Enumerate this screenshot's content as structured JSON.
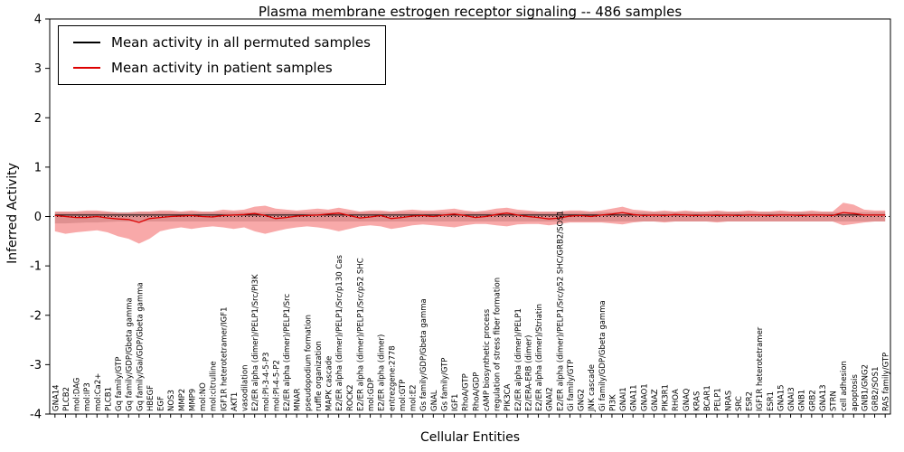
{
  "title": "Plasma membrane estrogen receptor signaling -- 486 samples",
  "chart_data": {
    "type": "line",
    "title": "Plasma membrane estrogen receptor signaling -- 486 samples",
    "xlabel": "Cellular Entities",
    "ylabel": "Inferred Activity",
    "ylim": [
      -4,
      4
    ],
    "yticks": [
      -4,
      -3,
      -2,
      -1,
      0,
      1,
      2,
      3,
      4
    ],
    "grid": false,
    "legend_position": "upper left",
    "categories": [
      "GNA14",
      "PLCB2",
      "mol:DAG",
      "mol:IP3",
      "mol:Ca2+",
      "PLCB1",
      "Gq family/GTP",
      "Gq family/GDP/Gbeta gamma",
      "Gq family/Gai/GDP/Gbeta gamma",
      "HBEGF",
      "EGF",
      "NOS3",
      "MMP2",
      "MMP9",
      "mol:NO",
      "mol:citrulline",
      "IGF1R heterotetramer/IGF1",
      "AKT1",
      "vasodilation",
      "E2/ER alpha (dimer)/PELP1/Src/PI3K",
      "mol:PI-3-4-5-P3",
      "mol:PI-4-5-P2",
      "E2/ER alpha (dimer)/PELP1/Src",
      "MNAR",
      "pseudopodium formation",
      "ruffle organization",
      "MAPK cascade",
      "E2/ER alpha (dimer)/PELP1/Src/p130 Cas",
      "ROCK2",
      "E2/ER alpha (dimer)/PELP1/Src/p52 SHC",
      "mol:GDP",
      "E2/ER alpha (dimer)",
      "entrezgene:2778",
      "mol:GTP",
      "mol:E2",
      "Gs family/GDP/Gbeta gamma",
      "GNAL",
      "Gs family/GTP",
      "IGF1",
      "RhoA/GTP",
      "RhoA/GDP",
      "cAMP biosynthetic process",
      "regulation of stress fiber formation",
      "PIK3CA",
      "E2/ER alpha (dimer)/PELP1",
      "E2/ERA-ERB (dimer)",
      "E2/ER alpha (dimer)/Striatin",
      "GNAI2",
      "E2/ER alpha (dimer)/PELP1/Src/p52 SHC/GRB2/SOS1",
      "Gi family/GTP",
      "GNG2",
      "JNK cascade",
      "Gi family/GDP/Gbeta gamma",
      "PI3K",
      "GNAI1",
      "GNA11",
      "GNAO1",
      "GNAZ",
      "PIK3R1",
      "RHOA",
      "GNAQ",
      "KRAS",
      "BCAR1",
      "PELP1",
      "NRAS",
      "SRC",
      "ESR2",
      "IGF1R heterotetramer",
      "ESR1",
      "GNA15",
      "GNAI3",
      "GNB1",
      "GRB2",
      "GNA13",
      "STRN",
      "cell adhesion",
      "apoptosis",
      "GNB1/GNG2",
      "GRB2/SOS1",
      "RAS family/GTP"
    ],
    "series": [
      {
        "name": "Mean activity in all permuted samples",
        "color": "#000000",
        "values": [
          0.03,
          0.03,
          0.03,
          0.03,
          0.03,
          0.03,
          0.03,
          0.03,
          0.03,
          0.03,
          0.03,
          0.03,
          0.03,
          0.03,
          0.03,
          0.03,
          0.03,
          0.03,
          0.03,
          0.03,
          0.03,
          0.03,
          0.03,
          0.03,
          0.03,
          0.03,
          0.03,
          0.03,
          0.03,
          0.03,
          0.03,
          0.03,
          0.03,
          0.03,
          0.03,
          0.03,
          0.03,
          0.03,
          0.03,
          0.03,
          0.03,
          0.03,
          0.03,
          0.03,
          0.03,
          0.03,
          0.03,
          0.03,
          0.03,
          0.03,
          0.03,
          0.03,
          0.03,
          0.03,
          0.03,
          0.03,
          0.03,
          0.03,
          0.03,
          0.03,
          0.03,
          0.03,
          0.03,
          0.03,
          0.03,
          0.03,
          0.03,
          0.03,
          0.03,
          0.03,
          0.03,
          0.03,
          0.03,
          0.03,
          0.03,
          0.03,
          0.03,
          0.03,
          0.03,
          0.03
        ]
      },
      {
        "name": "Mean activity in patient samples",
        "color": "#dd0000",
        "values": [
          0.02,
          0.0,
          -0.02,
          -0.02,
          0.0,
          -0.03,
          -0.05,
          -0.06,
          -0.12,
          -0.04,
          -0.02,
          0.0,
          0.01,
          0.02,
          0.0,
          -0.01,
          0.02,
          0.03,
          0.04,
          0.06,
          0.02,
          -0.04,
          -0.02,
          0.01,
          0.02,
          0.03,
          0.05,
          0.07,
          0.02,
          -0.03,
          -0.01,
          0.02,
          -0.04,
          -0.02,
          0.01,
          0.02,
          0.0,
          0.03,
          0.05,
          0.02,
          -0.02,
          0.0,
          0.04,
          0.07,
          0.03,
          0.0,
          -0.02,
          -0.05,
          -0.03,
          0.01,
          0.02,
          0.0,
          0.03,
          0.05,
          0.08,
          0.04,
          0.02,
          0.03,
          0.02,
          0.04,
          0.03,
          0.02,
          0.03,
          0.02,
          0.03,
          0.02,
          0.03,
          0.03,
          0.02,
          0.03,
          0.03,
          0.02,
          0.03,
          0.03,
          0.02,
          0.08,
          0.06,
          0.03,
          0.03,
          0.03
        ]
      }
    ],
    "bands": [
      {
        "name": "permuted-samples-range",
        "color": "#bfbfbf",
        "opacity": 0.65,
        "upper": [
          0.09,
          0.09,
          0.09,
          0.09,
          0.09,
          0.09,
          0.09,
          0.09,
          0.09,
          0.09,
          0.09,
          0.09,
          0.09,
          0.09,
          0.09,
          0.09,
          0.09,
          0.09,
          0.09,
          0.09,
          0.09,
          0.09,
          0.09,
          0.09,
          0.09,
          0.09,
          0.09,
          0.09,
          0.09,
          0.09,
          0.09,
          0.09,
          0.09,
          0.09,
          0.09,
          0.09,
          0.09,
          0.09,
          0.09,
          0.09,
          0.09,
          0.09,
          0.09,
          0.09,
          0.09,
          0.09,
          0.09,
          0.09,
          0.09,
          0.09,
          0.09,
          0.09,
          0.09,
          0.09,
          0.09,
          0.09,
          0.09,
          0.09,
          0.09,
          0.09,
          0.09,
          0.09,
          0.09,
          0.09,
          0.09,
          0.09,
          0.09,
          0.09,
          0.09,
          0.09,
          0.09,
          0.09,
          0.09,
          0.09,
          0.09,
          0.09,
          0.09,
          0.09,
          0.09,
          0.09
        ],
        "lower": [
          -0.14,
          -0.14,
          -0.13,
          -0.12,
          -0.12,
          -0.11,
          -0.1,
          -0.1,
          -0.1,
          -0.1,
          -0.1,
          -0.1,
          -0.1,
          -0.1,
          -0.1,
          -0.1,
          -0.1,
          -0.1,
          -0.1,
          -0.1,
          -0.1,
          -0.1,
          -0.1,
          -0.1,
          -0.1,
          -0.1,
          -0.1,
          -0.1,
          -0.1,
          -0.1,
          -0.1,
          -0.1,
          -0.1,
          -0.1,
          -0.1,
          -0.1,
          -0.1,
          -0.1,
          -0.1,
          -0.1,
          -0.1,
          -0.1,
          -0.1,
          -0.1,
          -0.1,
          -0.1,
          -0.1,
          -0.1,
          -0.1,
          -0.1,
          -0.1,
          -0.1,
          -0.1,
          -0.1,
          -0.1,
          -0.1,
          -0.1,
          -0.1,
          -0.1,
          -0.1,
          -0.1,
          -0.1,
          -0.1,
          -0.1,
          -0.1,
          -0.1,
          -0.1,
          -0.1,
          -0.1,
          -0.1,
          -0.1,
          -0.1,
          -0.1,
          -0.1,
          -0.1,
          -0.1,
          -0.1,
          -0.1,
          -0.1,
          -0.1
        ]
      },
      {
        "name": "patient-samples-range",
        "color": "#ee3333",
        "opacity": 0.42,
        "upper": [
          0.1,
          0.1,
          0.1,
          0.12,
          0.12,
          0.1,
          0.08,
          0.08,
          0.1,
          0.1,
          0.12,
          0.12,
          0.1,
          0.12,
          0.1,
          0.1,
          0.14,
          0.12,
          0.14,
          0.2,
          0.22,
          0.16,
          0.14,
          0.12,
          0.14,
          0.16,
          0.14,
          0.18,
          0.14,
          0.1,
          0.12,
          0.12,
          0.1,
          0.12,
          0.14,
          0.12,
          0.12,
          0.14,
          0.16,
          0.12,
          0.1,
          0.12,
          0.16,
          0.18,
          0.14,
          0.12,
          0.1,
          0.1,
          0.1,
          0.12,
          0.12,
          0.1,
          0.12,
          0.16,
          0.2,
          0.14,
          0.12,
          0.1,
          0.12,
          0.1,
          0.12,
          0.1,
          0.1,
          0.12,
          0.1,
          0.1,
          0.12,
          0.1,
          0.1,
          0.12,
          0.1,
          0.1,
          0.12,
          0.1,
          0.1,
          0.28,
          0.24,
          0.14,
          0.12,
          0.12
        ],
        "lower": [
          -0.3,
          -0.35,
          -0.32,
          -0.3,
          -0.28,
          -0.32,
          -0.4,
          -0.45,
          -0.55,
          -0.45,
          -0.3,
          -0.25,
          -0.22,
          -0.25,
          -0.22,
          -0.2,
          -0.22,
          -0.25,
          -0.22,
          -0.3,
          -0.35,
          -0.3,
          -0.25,
          -0.22,
          -0.2,
          -0.22,
          -0.25,
          -0.3,
          -0.25,
          -0.2,
          -0.18,
          -0.2,
          -0.25,
          -0.22,
          -0.18,
          -0.16,
          -0.18,
          -0.2,
          -0.22,
          -0.18,
          -0.15,
          -0.15,
          -0.18,
          -0.2,
          -0.16,
          -0.15,
          -0.15,
          -0.18,
          -0.15,
          -0.12,
          -0.12,
          -0.12,
          -0.12,
          -0.14,
          -0.16,
          -0.12,
          -0.1,
          -0.1,
          -0.12,
          -0.1,
          -0.1,
          -0.1,
          -0.1,
          -0.12,
          -0.1,
          -0.1,
          -0.1,
          -0.1,
          -0.1,
          -0.1,
          -0.1,
          -0.1,
          -0.1,
          -0.1,
          -0.1,
          -0.18,
          -0.15,
          -0.12,
          -0.1,
          -0.1
        ]
      }
    ]
  }
}
